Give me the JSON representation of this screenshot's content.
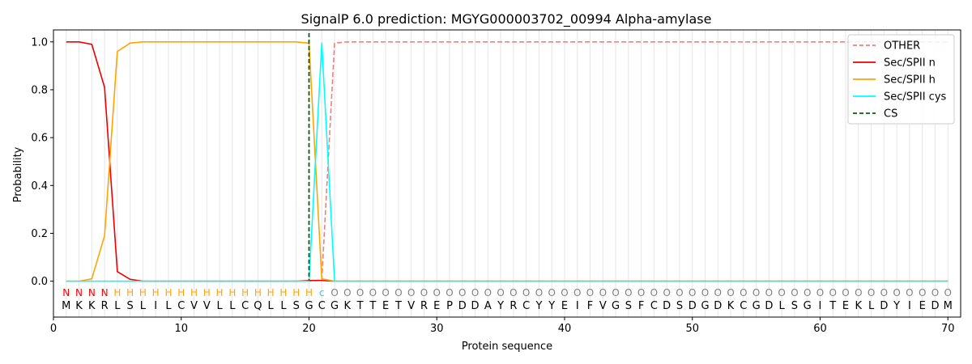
{
  "chart_data": {
    "type": "line",
    "title": "SignalP 6.0 prediction: MGYG000003702_00994 Alpha-amylase",
    "xlabel": "Protein sequence",
    "ylabel": "Probability",
    "xlim": [
      0,
      71
    ],
    "ylim": [
      -0.15,
      1.05
    ],
    "xticks": [
      0,
      10,
      20,
      30,
      40,
      50,
      60,
      70
    ],
    "yticks": [
      0.0,
      0.2,
      0.4,
      0.6,
      0.8,
      1.0
    ],
    "legend_position": "top-right",
    "sequence": "MKKRLSLILCVVLLCQLLSGCGKTTETVREPDDAYRCYYEIFVGSFCDSDGDKCGDLSGITEKLDYIEDM",
    "region_labels": "NNNNHHHHHHHHHHHHHHHHcOOOOOOOOOOOOOOOOOOOOOOOOOOOOOOOOOOOOOOOOOOOOOOOOO",
    "region_colors": {
      "N": "#ff0000",
      "H": "#ffa500",
      "c": "#00e5ee",
      "O": "#808080"
    },
    "series": [
      {
        "name": "OTHER",
        "color": "#f08080",
        "dash": true,
        "values": [
          0,
          0,
          0,
          0,
          0,
          0,
          0,
          0,
          0,
          0,
          0,
          0,
          0,
          0,
          0,
          0,
          0,
          0,
          0,
          0,
          0.005,
          0.995,
          1,
          1,
          1,
          1,
          1,
          1,
          1,
          1,
          1,
          1,
          1,
          1,
          1,
          1,
          1,
          1,
          1,
          1,
          1,
          1,
          1,
          1,
          1,
          1,
          1,
          1,
          1,
          1,
          1,
          1,
          1,
          1,
          1,
          1,
          1,
          1,
          1,
          1,
          1,
          1,
          1,
          1,
          1,
          1,
          1,
          1,
          1,
          1
        ]
      },
      {
        "name": "Sec/SPII n",
        "color": "#ee0000",
        "dash": false,
        "values": [
          1.0,
          1.0,
          0.99,
          0.81,
          0.04,
          0.008,
          0,
          0,
          0,
          0,
          0,
          0,
          0,
          0,
          0,
          0,
          0,
          0,
          0,
          0.003,
          0.003,
          0,
          0,
          0,
          0,
          0,
          0,
          0,
          0,
          0,
          0,
          0,
          0,
          0,
          0,
          0,
          0,
          0,
          0,
          0,
          0,
          0,
          0,
          0,
          0,
          0,
          0,
          0,
          0,
          0,
          0,
          0,
          0,
          0,
          0,
          0,
          0,
          0,
          0,
          0,
          0,
          0,
          0,
          0,
          0,
          0,
          0,
          0,
          0,
          0
        ]
      },
      {
        "name": "Sec/SPII h",
        "color": "#ffa500",
        "dash": false,
        "values": [
          0,
          0,
          0.01,
          0.19,
          0.96,
          0.995,
          1.0,
          1.0,
          1.0,
          1.0,
          1.0,
          1.0,
          1.0,
          1.0,
          1.0,
          1.0,
          1.0,
          1.0,
          1.0,
          0.995,
          0.01,
          0,
          0,
          0,
          0,
          0,
          0,
          0,
          0,
          0,
          0,
          0,
          0,
          0,
          0,
          0,
          0,
          0,
          0,
          0,
          0,
          0,
          0,
          0,
          0,
          0,
          0,
          0,
          0,
          0,
          0,
          0,
          0,
          0,
          0,
          0,
          0,
          0,
          0,
          0,
          0,
          0,
          0,
          0,
          0,
          0,
          0,
          0,
          0,
          0
        ]
      },
      {
        "name": "Sec/SPII cys",
        "color": "#00ffff",
        "dash": false,
        "values": [
          0,
          0,
          0,
          0,
          0,
          0,
          0,
          0,
          0,
          0,
          0,
          0,
          0,
          0,
          0,
          0,
          0,
          0,
          0,
          0,
          0.995,
          0,
          0,
          0,
          0,
          0,
          0,
          0,
          0,
          0,
          0,
          0,
          0,
          0,
          0,
          0,
          0,
          0,
          0,
          0,
          0,
          0,
          0,
          0,
          0,
          0,
          0,
          0,
          0,
          0,
          0,
          0,
          0,
          0,
          0,
          0,
          0,
          0,
          0,
          0,
          0,
          0,
          0,
          0,
          0,
          0,
          0,
          0,
          0,
          0
        ]
      }
    ],
    "cleavage_site": {
      "name": "CS",
      "x": 20,
      "color": "#006400"
    }
  }
}
